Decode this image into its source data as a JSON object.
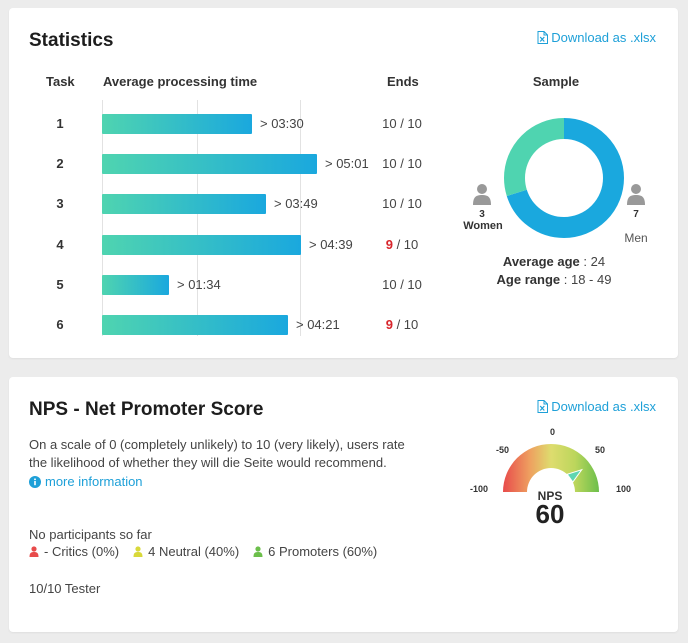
{
  "statistics": {
    "title": "Statistics",
    "download_label": "Download as .xlsx",
    "headers": {
      "task": "Task",
      "avg_time": "Average processing time",
      "ends": "Ends",
      "sample": "Sample"
    },
    "rows": [
      {
        "task": "1",
        "time": "> 03:30",
        "seconds": 210,
        "ends_done": "10",
        "ends_total": "10",
        "incomplete": false
      },
      {
        "task": "2",
        "time": "> 05:01",
        "seconds": 301,
        "ends_done": "10",
        "ends_total": "10",
        "incomplete": false
      },
      {
        "task": "3",
        "time": "> 03:49",
        "seconds": 229,
        "ends_done": "10",
        "ends_total": "10",
        "incomplete": false
      },
      {
        "task": "4",
        "time": "> 04:39",
        "seconds": 279,
        "ends_done": "9",
        "ends_total": "10",
        "incomplete": true
      },
      {
        "task": "5",
        "time": "> 01:34",
        "seconds": 94,
        "ends_done": "10",
        "ends_total": "10",
        "incomplete": false
      },
      {
        "task": "6",
        "time": "> 04:21",
        "seconds": 261,
        "ends_done": "9",
        "ends_total": "10",
        "incomplete": true
      }
    ],
    "sample": {
      "women_count": "3",
      "women_label": "Women",
      "men_count": "7",
      "men_label": "Men",
      "women_value": 3,
      "men_value": 7,
      "women_color": "#4fd4b0",
      "men_color": "#1aa8de",
      "avg_age_label": "Average age",
      "avg_age_value": "24",
      "age_range_label": "Age range",
      "age_range_value": "18 - 49"
    }
  },
  "nps": {
    "title": "NPS - Net Promoter Score",
    "download_label": "Download as .xlsx",
    "description": "On a scale of 0 (completely unlikely) to 10 (very likely), users rate the likelihood of whether they will die Seite would recommend.",
    "more_info_label": "more information",
    "no_participants": "No participants so far",
    "legend": {
      "critics": "- Critics (0%)",
      "neutral": "4 Neutral (40%)",
      "promoters": "6 Promoters (60%)"
    },
    "colors": {
      "critics": "#e84b4b",
      "neutral": "#d9d93a",
      "promoters": "#6cbf4b"
    },
    "tester": "10/10 Tester",
    "gauge": {
      "ticks": [
        "-100",
        "-50",
        "0",
        "50",
        "100"
      ],
      "label": "NPS",
      "value": "60",
      "score": 60
    }
  }
}
